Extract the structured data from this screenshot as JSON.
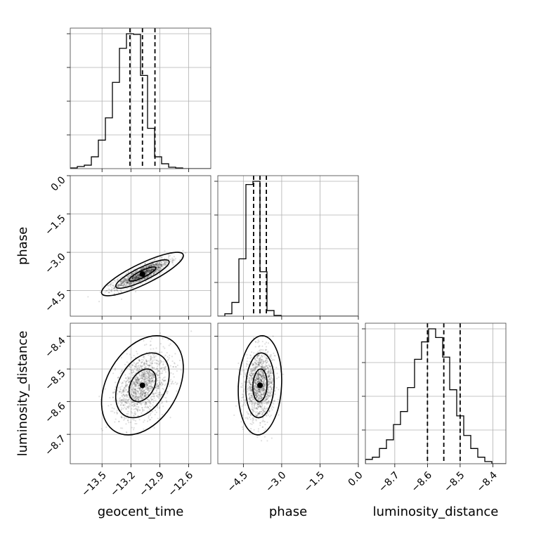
{
  "chart_data": {
    "type": "corner",
    "parameters": [
      {
        "name": "geocent_time",
        "label": "geocent_time",
        "range": [
          -13.83,
          -12.37
        ],
        "ticks": [
          -13.5,
          -13.2,
          -12.9,
          -12.6
        ],
        "tick_labels": [
          "−13.5",
          "−13.2",
          "−12.9",
          "−12.6"
        ],
        "quantiles": [
          -13.21,
          -13.08,
          -12.95
        ],
        "hist": {
          "edges_start": -13.83,
          "bin_width": 0.073,
          "counts": [
            1,
            3,
            5,
            17,
            41,
            73,
            124,
            173,
            194,
            193,
            134,
            58,
            17,
            7,
            2,
            1,
            0,
            0,
            0,
            0
          ]
        }
      },
      {
        "name": "phase",
        "label": "phase",
        "range": [
          -5.5,
          0.0
        ],
        "ticks": [
          -4.5,
          -3.0,
          -1.5,
          0.0
        ],
        "tick_labels": [
          "−4.5",
          "−3.0",
          "−1.5",
          "0.0"
        ],
        "quantiles": [
          -4.1,
          -3.85,
          -3.6
        ],
        "hist": {
          "edges_start": -5.5,
          "bin_width": 0.275,
          "counts": [
            0,
            3,
            17,
            71,
            163,
            167,
            55,
            7,
            1,
            0,
            0,
            0,
            0,
            0,
            0,
            0,
            0,
            0,
            0,
            0
          ]
        }
      },
      {
        "name": "luminosity_distance",
        "label": "luminosity_distance",
        "range": [
          -8.79,
          -8.36
        ],
        "ticks": [
          -8.7,
          -8.6,
          -8.5,
          -8.4
        ],
        "tick_labels": [
          "−8.7",
          "−8.6",
          "−8.5",
          "−8.4"
        ],
        "quantiles": [
          -8.6,
          -8.55,
          -8.5
        ],
        "hist": {
          "edges_start": -8.79,
          "bin_width": 0.0215,
          "counts": [
            2,
            3,
            7,
            11,
            18,
            24,
            35,
            48,
            56,
            62,
            58,
            49,
            34,
            22,
            13,
            7,
            3,
            1,
            0,
            0
          ]
        }
      }
    ],
    "pairs": [
      {
        "x": "geocent_time",
        "y": "phase",
        "mean": [
          -13.08,
          -3.85
        ],
        "sd": [
          0.14,
          0.28
        ],
        "corr": 0.85,
        "contour_levels": [
          0.39,
          0.86,
          0.99
        ]
      },
      {
        "x": "geocent_time",
        "y": "luminosity_distance",
        "mean": [
          -13.08,
          -8.55
        ],
        "sd": [
          0.14,
          0.05
        ],
        "corr": 0.35,
        "contour_levels": [
          0.39,
          0.86,
          0.99
        ]
      },
      {
        "x": "phase",
        "y": "luminosity_distance",
        "mean": [
          -3.85,
          -8.55
        ],
        "sd": [
          0.28,
          0.05
        ],
        "corr": 0.1,
        "contour_levels": [
          0.39,
          0.86,
          0.99
        ]
      }
    ],
    "grid": true,
    "colors": {
      "line": "#000000",
      "grid": "#b0b0b0",
      "frame": "#404040"
    }
  }
}
